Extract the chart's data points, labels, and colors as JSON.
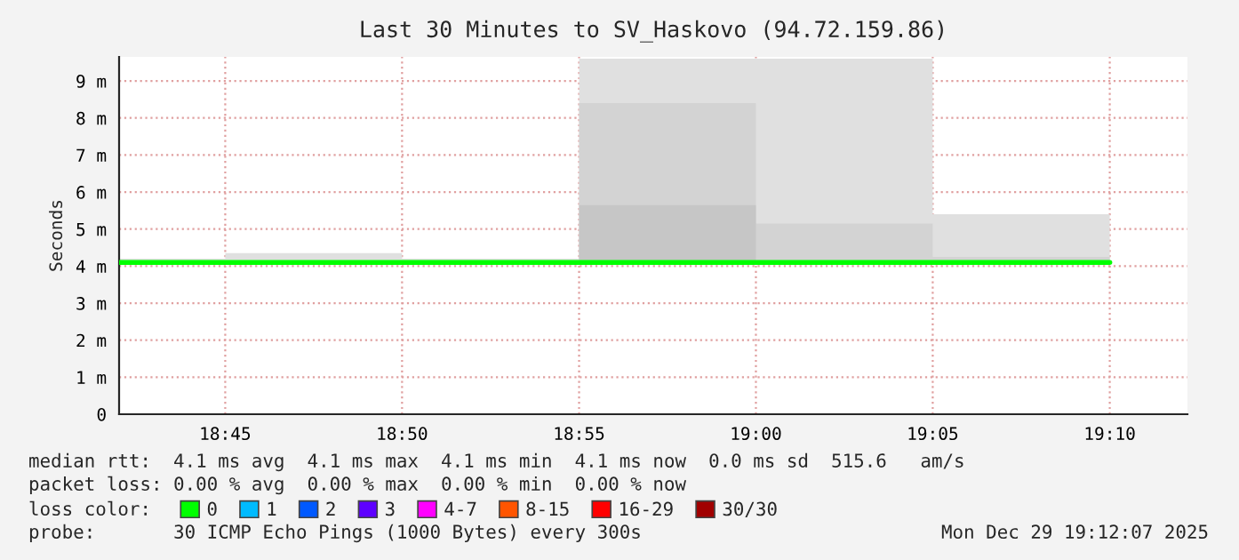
{
  "chart_data": {
    "type": "step",
    "title": "Last 30 Minutes to SV_Haskovo (94.72.159.86)",
    "ylabel": "Seconds",
    "x": [
      18.7,
      18.75,
      18.8333,
      18.9167,
      19.0,
      19.0833,
      19.1667
    ],
    "series": [
      {
        "name": "0",
        "color": "#00ff00",
        "values": [
          4.1,
          4.1,
          4.1,
          4.1,
          4.1,
          4.1,
          4.1
        ]
      },
      {
        "type": "area",
        "color": "#e0e0e0",
        "values": [
          4.2,
          4.35,
          4.2,
          9.6,
          9.6,
          5.4,
          5.4
        ]
      },
      {
        "type": "area",
        "color": "#d3d3d3",
        "values": [
          null,
          null,
          null,
          8.4,
          5.15,
          4.25,
          4.25
        ]
      },
      {
        "type": "area",
        "color": "#c6c6c6",
        "values": [
          null,
          null,
          null,
          5.65,
          4.55,
          null,
          null
        ]
      },
      {
        "name": "1",
        "color": "#00bbff",
        "values": [
          null,
          null,
          null,
          null,
          null,
          null,
          null
        ]
      },
      {
        "name": "2",
        "color": "#0059ff",
        "values": [
          null,
          null,
          null,
          null,
          null,
          null,
          null
        ]
      },
      {
        "name": "3",
        "color": "#5e00ff",
        "values": [
          null,
          null,
          null,
          null,
          null,
          null,
          null
        ]
      },
      {
        "name": "4-7",
        "color": "#ff00ff",
        "values": [
          null,
          null,
          null,
          null,
          null,
          null,
          null
        ]
      },
      {
        "name": "8-15",
        "color": "#ff5500",
        "values": [
          null,
          null,
          null,
          null,
          null,
          null,
          null
        ]
      },
      {
        "name": "16-29",
        "color": "#ff0000",
        "values": [
          null,
          null,
          null,
          null,
          null,
          null,
          null
        ]
      },
      {
        "name": "30/30",
        "color": "#a10000",
        "values": [
          null,
          null,
          null,
          null,
          null,
          null,
          null
        ]
      }
    ],
    "legend_title": "loss color:",
    "legend": "bottom",
    "xlim": [
      18.7,
      19.2033
    ],
    "xticks": [
      {
        "value": 18.75,
        "label": "18:45"
      },
      {
        "value": 18.8333,
        "label": "18:50"
      },
      {
        "value": 18.9167,
        "label": "18:55"
      },
      {
        "value": 19.0,
        "label": "19:00"
      },
      {
        "value": 19.0833,
        "label": "19:05"
      },
      {
        "value": 19.1667,
        "label": "19:10"
      }
    ],
    "ylim": [
      0,
      9.65
    ],
    "yticks": [
      {
        "value": 0,
        "label": "0"
      },
      {
        "value": 1,
        "label": "1 m"
      },
      {
        "value": 2,
        "label": "2 m"
      },
      {
        "value": 3,
        "label": "3 m"
      },
      {
        "value": 4,
        "label": "4 m"
      },
      {
        "value": 5,
        "label": "5 m"
      },
      {
        "value": 6,
        "label": "6 m"
      },
      {
        "value": 7,
        "label": "7 m"
      },
      {
        "value": 8,
        "label": "8 m"
      },
      {
        "value": 9,
        "label": "9 m"
      }
    ],
    "grid": true,
    "annotations": [
      "median rtt:  4.1 ms avg  4.1 ms max  4.1 ms min  4.1 ms now  0.0 ms sd  515.6   am/s",
      "packet loss: 0.00 % avg  0.00 % max  0.00 % min  0.00 % now",
      "probe:       30 ICMP Echo Pings (1000 Bytes) every 300s",
      "Mon Dec 29 19:12:07 2025"
    ]
  }
}
